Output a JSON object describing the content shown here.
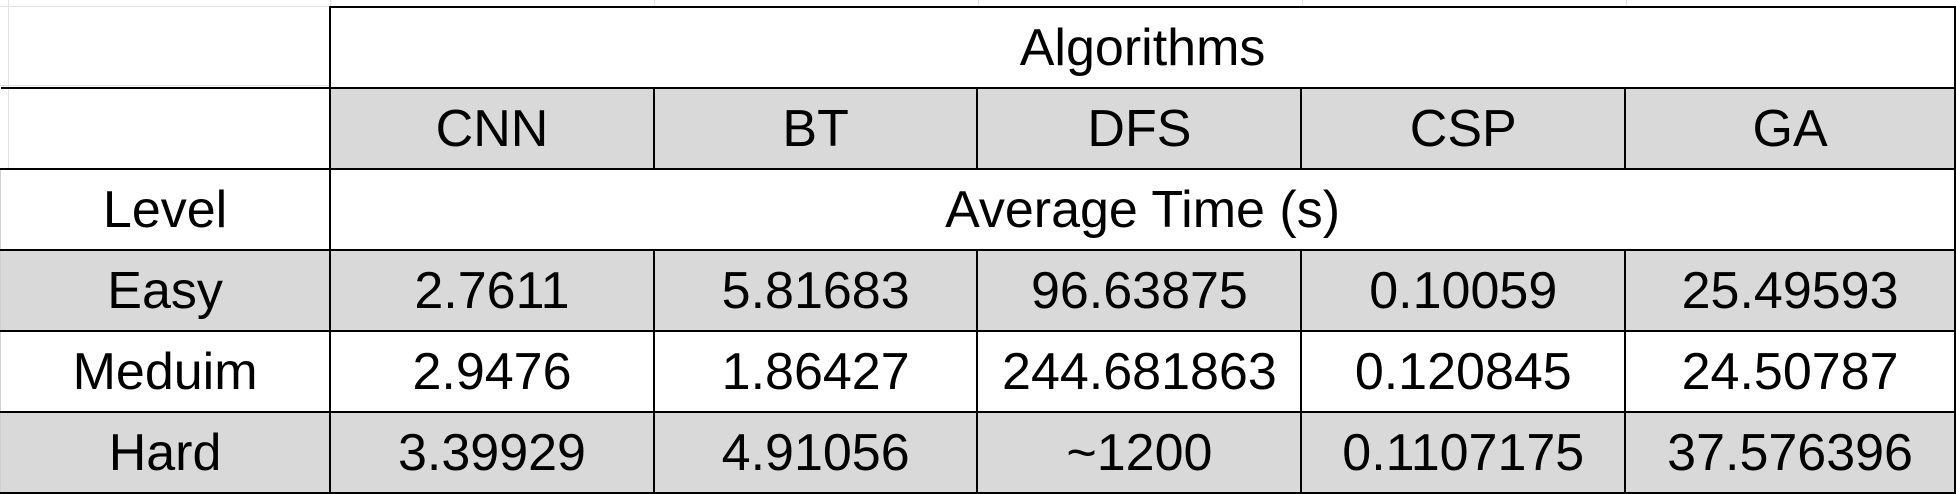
{
  "table": {
    "group_header": "Algorithms",
    "columns": [
      "CNN",
      "BT",
      "DFS",
      "CSP",
      "GA"
    ],
    "level_header": "Level",
    "metric_header": "Average Time (s)",
    "rows": [
      {
        "level": "Easy",
        "values": [
          "2.7611",
          "5.81683",
          "96.63875",
          "0.10059",
          "25.49593"
        ]
      },
      {
        "level": "Meduim",
        "values": [
          "2.9476",
          "1.86427",
          "244.681863",
          "0.120845",
          "24.50787"
        ]
      },
      {
        "level": "Hard",
        "values": [
          "3.39929",
          "4.91056",
          "~1200",
          "0.1107175",
          "37.576396"
        ]
      }
    ]
  },
  "colors": {
    "header_fill": "#d9d9d9",
    "row_fill": "#ffffff",
    "border": "#000000",
    "gridline": "#e3e3e3"
  }
}
